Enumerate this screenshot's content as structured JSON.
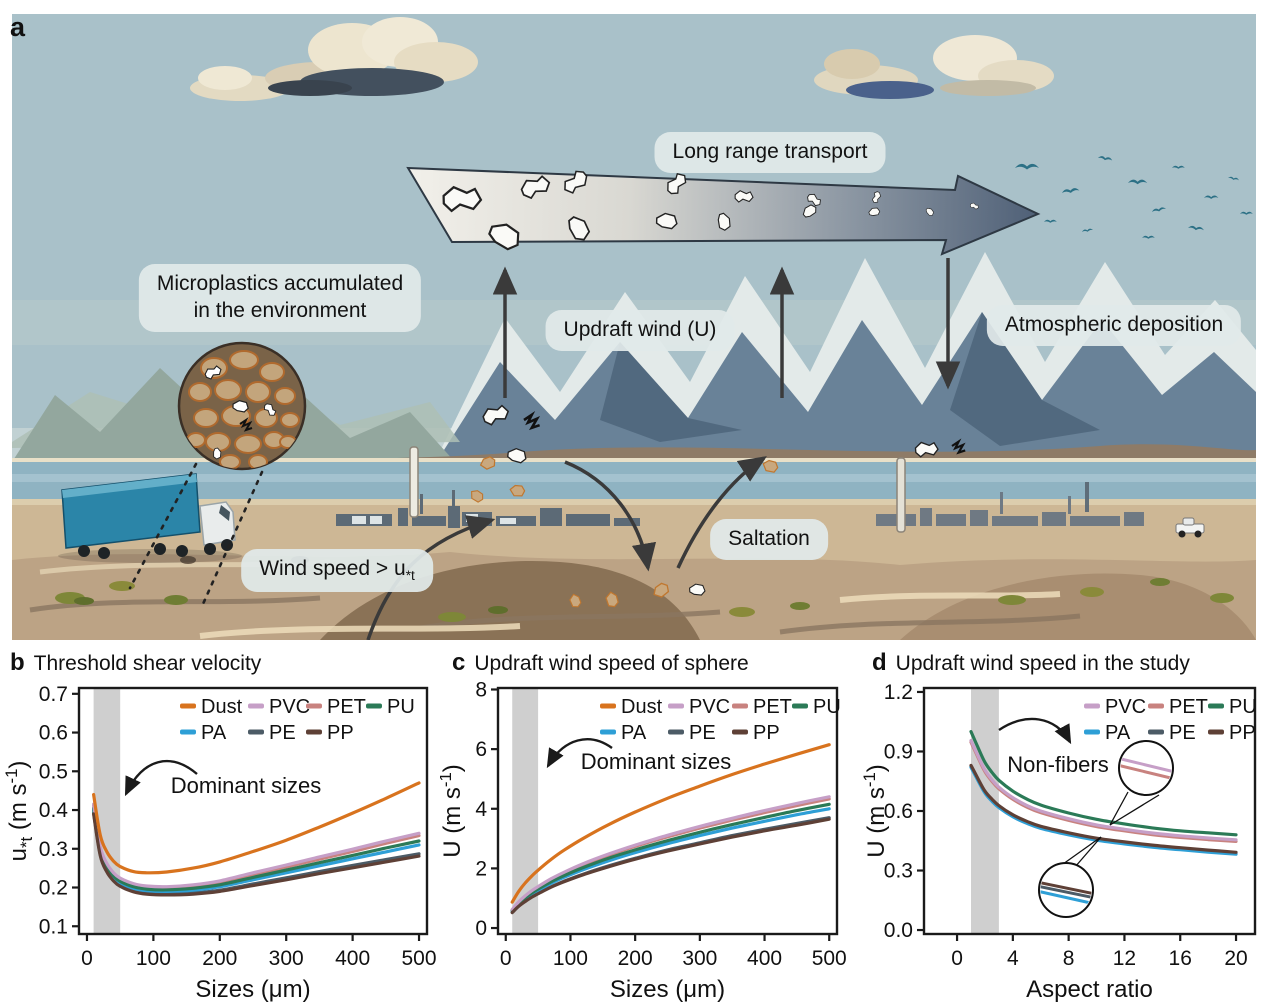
{
  "colors": {
    "dust": "#D8731E",
    "pvc": "#C69FC7",
    "pet": "#C8827F",
    "pu": "#2B7A57",
    "pa": "#2E9FD6",
    "pe": "#4C5B66",
    "pp": "#5E4036",
    "band_gray": "#CFCFCF",
    "arrow_dark": "#3A3A3A",
    "bird_teal": "#2D7186"
  },
  "panel_a": {
    "label": "a",
    "labels": {
      "long_range_transport": "Long range transport",
      "microplastics_line1": "Microplastics accumulated",
      "microplastics_line2": "in the environment",
      "updraft_wind": "Updraft wind (U)",
      "atmospheric_deposition": "Atmospheric deposition",
      "saltation": "Saltation",
      "wind_speed_prefix": "Wind speed > u",
      "wind_speed_sub": "*t"
    }
  },
  "panels": {
    "b": {
      "label": "b",
      "title": "Threshold shear velocity"
    },
    "c": {
      "label": "c",
      "title": "Updraft wind speed of sphere"
    },
    "d": {
      "label": "d",
      "title": "Updraft wind speed in the study"
    }
  },
  "chart_data": [
    {
      "id": "b",
      "type": "line",
      "title": "Threshold shear velocity",
      "xlabel": "Sizes (μm)",
      "ylabel": [
        {
          "t": "u"
        },
        {
          "t": "*t",
          "shift": "sub"
        },
        {
          "t": " (m s"
        },
        {
          "t": "-1",
          "shift": "sup"
        },
        {
          "t": ")"
        }
      ],
      "xlim": [
        -12,
        512
      ],
      "ylim": [
        0.08,
        0.715
      ],
      "xticks": [
        0,
        100,
        200,
        300,
        400,
        500
      ],
      "xtick_labels": [
        "0",
        "100",
        "200",
        "300",
        "400",
        "500"
      ],
      "yticks": [
        0.1,
        0.2,
        0.3,
        0.4,
        0.5,
        0.6,
        0.7
      ],
      "ytick_labels": [
        "0.1",
        "0.2",
        "0.3",
        "0.4",
        "0.5",
        "0.6",
        "0.7"
      ],
      "band": {
        "from": 10,
        "to": 50
      },
      "annotation": "Dominant sizes",
      "legend_rows": [
        [
          "Dust",
          "PVC",
          "PET",
          "PU"
        ],
        [
          "PA",
          "PE",
          "PP"
        ]
      ],
      "x": [
        10,
        20,
        30,
        40,
        50,
        70,
        90,
        120,
        160,
        200,
        250,
        300,
        350,
        400,
        450,
        500
      ],
      "series": [
        {
          "name": "Dust",
          "color": "#D8731E",
          "values": [
            0.44,
            0.335,
            0.292,
            0.268,
            0.254,
            0.241,
            0.238,
            0.24,
            0.25,
            0.266,
            0.293,
            0.322,
            0.356,
            0.392,
            0.43,
            0.47
          ]
        },
        {
          "name": "PVC",
          "color": "#C69FC7",
          "values": [
            0.415,
            0.305,
            0.262,
            0.238,
            0.224,
            0.21,
            0.204,
            0.202,
            0.207,
            0.217,
            0.238,
            0.258,
            0.279,
            0.299,
            0.32,
            0.34
          ]
        },
        {
          "name": "PET",
          "color": "#C8827F",
          "values": [
            0.411,
            0.301,
            0.258,
            0.234,
            0.22,
            0.206,
            0.2,
            0.198,
            0.203,
            0.213,
            0.233,
            0.253,
            0.273,
            0.293,
            0.314,
            0.334
          ]
        },
        {
          "name": "PU",
          "color": "#2B7A57",
          "values": [
            0.405,
            0.296,
            0.253,
            0.23,
            0.216,
            0.202,
            0.196,
            0.194,
            0.198,
            0.207,
            0.226,
            0.245,
            0.264,
            0.283,
            0.302,
            0.32
          ]
        },
        {
          "name": "PA",
          "color": "#2E9FD6",
          "values": [
            0.4,
            0.291,
            0.249,
            0.226,
            0.212,
            0.198,
            0.192,
            0.19,
            0.193,
            0.202,
            0.22,
            0.238,
            0.256,
            0.274,
            0.292,
            0.31
          ]
        },
        {
          "name": "PE",
          "color": "#4C5B66",
          "values": [
            0.393,
            0.285,
            0.243,
            0.22,
            0.206,
            0.192,
            0.186,
            0.184,
            0.186,
            0.193,
            0.209,
            0.225,
            0.241,
            0.257,
            0.272,
            0.287
          ]
        },
        {
          "name": "PP",
          "color": "#5E4036",
          "values": [
            0.39,
            0.282,
            0.24,
            0.217,
            0.203,
            0.189,
            0.183,
            0.181,
            0.183,
            0.19,
            0.205,
            0.22,
            0.236,
            0.251,
            0.266,
            0.281
          ]
        }
      ]
    },
    {
      "id": "c",
      "type": "line",
      "title": "Updraft wind speed of sphere",
      "xlabel": "Sizes (μm)",
      "ylabel": [
        {
          "t": "U (m s"
        },
        {
          "t": "-1",
          "shift": "sup"
        },
        {
          "t": ")"
        }
      ],
      "xlim": [
        -12,
        512
      ],
      "ylim": [
        -0.2,
        8.05
      ],
      "xticks": [
        0,
        100,
        200,
        300,
        400,
        500
      ],
      "xtick_labels": [
        "0",
        "100",
        "200",
        "300",
        "400",
        "500"
      ],
      "yticks": [
        0,
        2,
        4,
        6,
        8
      ],
      "ytick_labels": [
        "0",
        "2",
        "4",
        "6",
        "8"
      ],
      "band": {
        "from": 10,
        "to": 50
      },
      "annotation": "Dominant sizes",
      "legend_rows": [
        [
          "Dust",
          "PVC",
          "PET",
          "PU"
        ],
        [
          "PA",
          "PE",
          "PP"
        ]
      ],
      "x": [
        10,
        20,
        30,
        40,
        50,
        70,
        90,
        120,
        160,
        200,
        250,
        300,
        350,
        400,
        450,
        500
      ],
      "series": [
        {
          "name": "Dust",
          "color": "#D8731E",
          "values": [
            0.87,
            1.23,
            1.51,
            1.74,
            1.94,
            2.3,
            2.61,
            3.01,
            3.48,
            3.89,
            4.35,
            4.76,
            5.15,
            5.5,
            5.83,
            6.15
          ]
        },
        {
          "name": "PVC",
          "color": "#C69FC7",
          "values": [
            0.62,
            0.88,
            1.08,
            1.25,
            1.39,
            1.65,
            1.87,
            2.16,
            2.49,
            2.78,
            3.11,
            3.41,
            3.68,
            3.94,
            4.18,
            4.4
          ]
        },
        {
          "name": "PET",
          "color": "#C8827F",
          "values": [
            0.61,
            0.87,
            1.06,
            1.23,
            1.37,
            1.62,
            1.84,
            2.12,
            2.45,
            2.74,
            3.06,
            3.35,
            3.62,
            3.87,
            4.11,
            4.33
          ]
        },
        {
          "name": "PU",
          "color": "#2B7A57",
          "values": [
            0.59,
            0.83,
            1.02,
            1.17,
            1.31,
            1.55,
            1.76,
            2.03,
            2.35,
            2.62,
            2.93,
            3.21,
            3.47,
            3.71,
            3.94,
            4.15
          ]
        },
        {
          "name": "PA",
          "color": "#2E9FD6",
          "values": [
            0.57,
            0.8,
            0.98,
            1.13,
            1.26,
            1.5,
            1.7,
            1.96,
            2.26,
            2.53,
            2.83,
            3.1,
            3.35,
            3.58,
            3.8,
            4.0
          ]
        },
        {
          "name": "PE",
          "color": "#4C5B66",
          "values": [
            0.52,
            0.74,
            0.91,
            1.05,
            1.17,
            1.38,
            1.57,
            1.81,
            2.09,
            2.34,
            2.62,
            2.86,
            3.1,
            3.31,
            3.51,
            3.7
          ]
        },
        {
          "name": "PP",
          "color": "#5E4036",
          "values": [
            0.52,
            0.73,
            0.89,
            1.03,
            1.15,
            1.37,
            1.55,
            1.79,
            2.06,
            2.31,
            2.58,
            2.82,
            3.05,
            3.26,
            3.45,
            3.65
          ]
        }
      ]
    },
    {
      "id": "d",
      "type": "line",
      "title": "Updraft wind speed in the study",
      "xlabel": "Aspect ratio",
      "ylabel": [
        {
          "t": "U (m s"
        },
        {
          "t": "-1",
          "shift": "sup"
        },
        {
          "t": ")"
        }
      ],
      "xlim": [
        -2.37,
        21.36
      ],
      "ylim": [
        -0.02,
        1.22
      ],
      "xticks": [
        0,
        4,
        8,
        12,
        16,
        20
      ],
      "xtick_labels": [
        "0",
        "4",
        "8",
        "12",
        "16",
        "20"
      ],
      "yticks": [
        0.0,
        0.3,
        0.6,
        0.9,
        1.2
      ],
      "ytick_labels": [
        "0.0",
        "0.3",
        "0.6",
        "0.9",
        "1.2"
      ],
      "band": {
        "from": 1,
        "to": 3
      },
      "annotation": "Non-fibers",
      "legend_rows": [
        [
          "PVC",
          "PET",
          "PU"
        ],
        [
          "PA",
          "PE",
          "PP"
        ]
      ],
      "x": [
        1,
        1.5,
        2,
        2.5,
        3,
        4,
        5,
        6,
        8,
        10,
        12,
        14,
        16,
        18,
        20
      ],
      "series": [
        {
          "name": "PVC",
          "color": "#C69FC7",
          "values": [
            0.955,
            0.878,
            0.806,
            0.758,
            0.72,
            0.667,
            0.628,
            0.6,
            0.561,
            0.53,
            0.508,
            0.489,
            0.475,
            0.464,
            0.455
          ]
        },
        {
          "name": "PET",
          "color": "#C8827F",
          "values": [
            0.947,
            0.87,
            0.798,
            0.75,
            0.712,
            0.659,
            0.62,
            0.592,
            0.553,
            0.522,
            0.5,
            0.481,
            0.467,
            0.456,
            0.447
          ]
        },
        {
          "name": "PU",
          "color": "#2B7A57",
          "values": [
            1.0,
            0.92,
            0.845,
            0.795,
            0.755,
            0.7,
            0.66,
            0.63,
            0.59,
            0.558,
            0.535,
            0.515,
            0.5,
            0.49,
            0.48
          ]
        },
        {
          "name": "PA",
          "color": "#2E9FD6",
          "values": [
            0.82,
            0.753,
            0.69,
            0.65,
            0.617,
            0.571,
            0.538,
            0.513,
            0.48,
            0.453,
            0.434,
            0.418,
            0.405,
            0.393,
            0.382
          ]
        },
        {
          "name": "PE",
          "color": "#4C5B66",
          "values": [
            0.825,
            0.758,
            0.695,
            0.655,
            0.622,
            0.576,
            0.543,
            0.518,
            0.485,
            0.458,
            0.439,
            0.423,
            0.41,
            0.398,
            0.387
          ]
        },
        {
          "name": "PP",
          "color": "#5E4036",
          "values": [
            0.83,
            0.763,
            0.7,
            0.66,
            0.627,
            0.581,
            0.548,
            0.523,
            0.49,
            0.463,
            0.444,
            0.428,
            0.415,
            0.403,
            0.392
          ]
        }
      ]
    }
  ]
}
